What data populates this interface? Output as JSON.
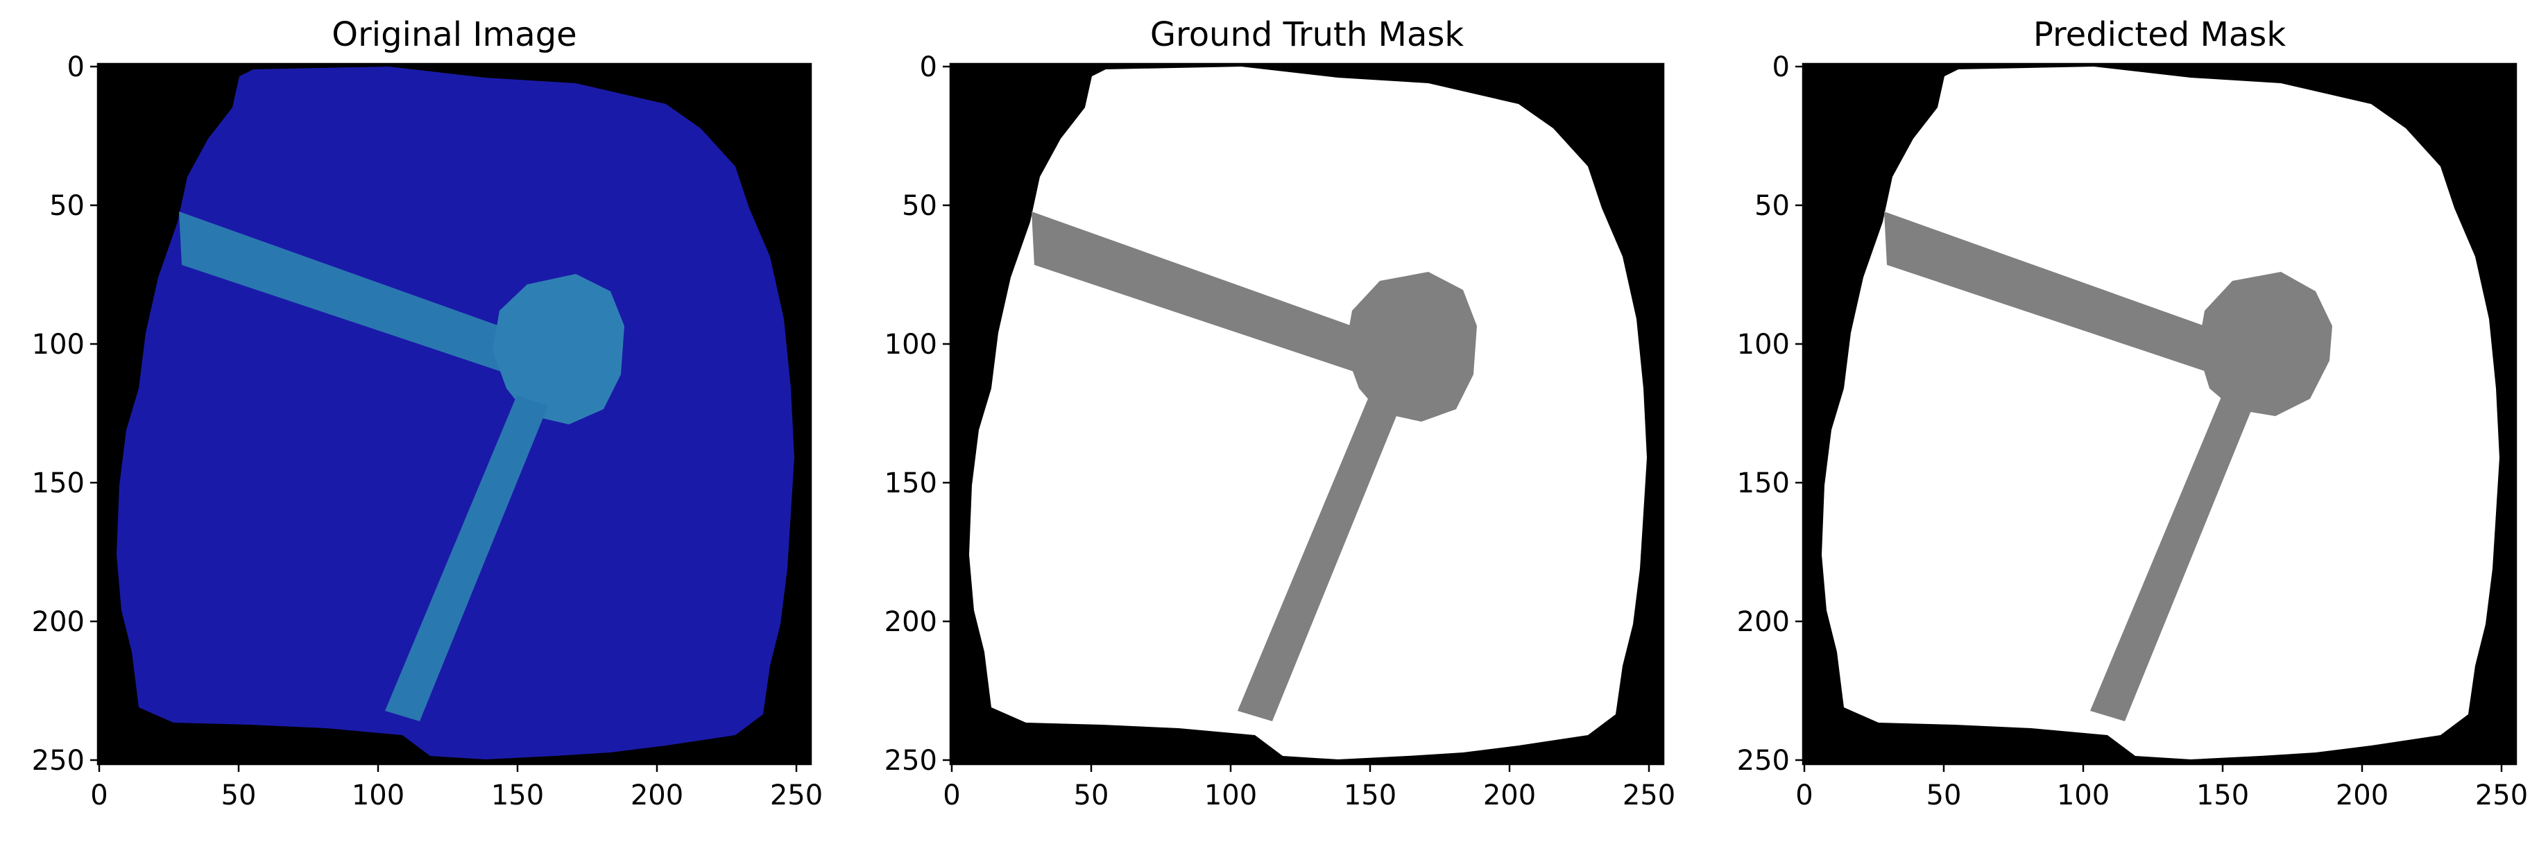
{
  "figure": {
    "panels": [
      {
        "title": "Original Image",
        "kind": "photo",
        "x_ticks": [
          "0",
          "50",
          "100",
          "150",
          "200",
          "250"
        ],
        "y_ticks": [
          "0",
          "50",
          "100",
          "150",
          "200",
          "250"
        ]
      },
      {
        "title": "Ground Truth Mask",
        "kind": "mask",
        "x_ticks": [
          "0",
          "50",
          "100",
          "150",
          "200",
          "250"
        ],
        "y_ticks": [
          "0",
          "50",
          "100",
          "150",
          "200",
          "250"
        ]
      },
      {
        "title": "Predicted Mask",
        "kind": "mask",
        "x_ticks": [
          "0",
          "50",
          "100",
          "150",
          "200",
          "250"
        ],
        "y_ticks": [
          "0",
          "50",
          "100",
          "150",
          "200",
          "250"
        ]
      }
    ],
    "colors": {
      "background": "#000000",
      "region_fill_photo": "#1a1aa8",
      "object_fill_photo": "#2a78b0",
      "region_fill_mask": "#ffffff",
      "object_fill_mask": "#808080"
    }
  }
}
